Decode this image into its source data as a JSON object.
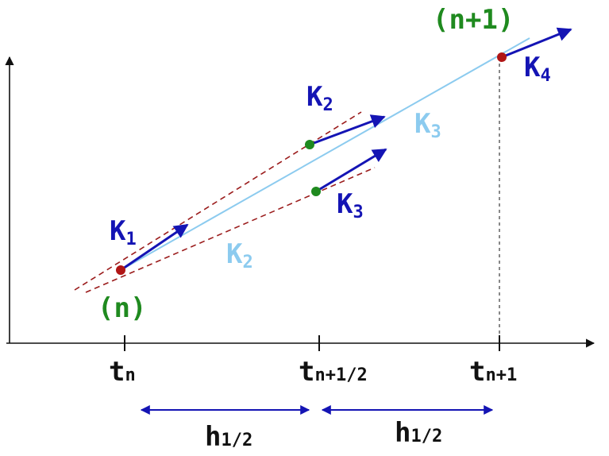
{
  "colors": {
    "axis": "#111111",
    "slope_arrow": "#1414b4",
    "secant": "#8ccbef",
    "tangent_dashed": "#9b1c1c",
    "point_red": "#b01515",
    "point_green": "#1f8a1f",
    "label_blue": "#1414b4",
    "label_light": "#8ccbef",
    "label_green": "#1f8a1f"
  },
  "labels": {
    "k1": {
      "main": "K",
      "sub": "1"
    },
    "k2_upper": {
      "main": "K",
      "sub": "2"
    },
    "k3_right": {
      "main": "K",
      "sub": "3"
    },
    "k4": {
      "main": "K",
      "sub": "4"
    },
    "k3_light": {
      "main": "K",
      "sub": "3"
    },
    "k2_light": {
      "main": "K",
      "sub": "2"
    },
    "point_n": "(n)",
    "point_n1": "(n+1)"
  },
  "ticks": {
    "t_n": {
      "main": "t",
      "sub": "n"
    },
    "t_half": {
      "main": "t",
      "sub": "n+1/2"
    },
    "t_n1": {
      "main": "t",
      "sub": "n+1"
    }
  },
  "intervals": {
    "h_left": {
      "main": "h",
      "sub": "1/2"
    },
    "h_right": {
      "main": "h",
      "sub": "1/2"
    }
  }
}
